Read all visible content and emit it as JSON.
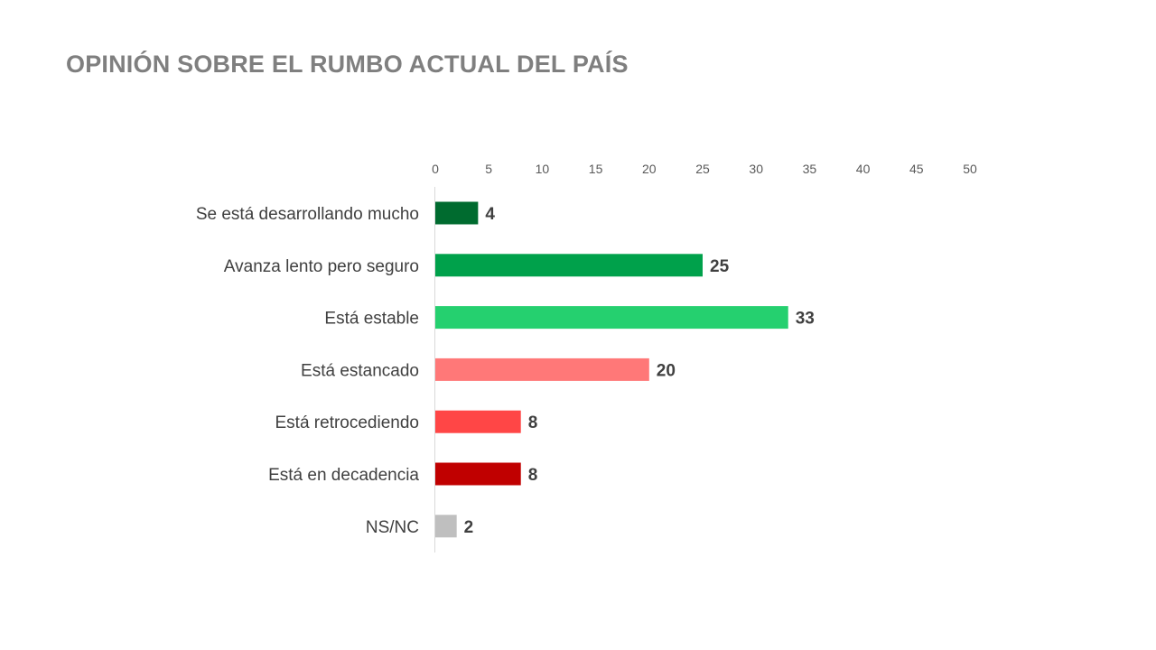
{
  "title": "OPINIÓN SOBRE EL RUMBO ACTUAL DEL PAÍS",
  "chart_data": {
    "type": "bar",
    "orientation": "horizontal",
    "title": "OPINIÓN SOBRE EL RUMBO ACTUAL DEL PAÍS",
    "xlabel": "",
    "ylabel": "",
    "xlim": [
      0,
      50
    ],
    "x_ticks": [
      0,
      5,
      10,
      15,
      20,
      25,
      30,
      35,
      40,
      45,
      50
    ],
    "x_axis_position": "top",
    "grid": false,
    "legend": "none",
    "categories": [
      "Se está desarrollando mucho",
      "Avanza lento pero seguro",
      "Está estable",
      "Está estancado",
      "Está retrocediendo",
      "Está en decadencia",
      "NS/NC"
    ],
    "values": [
      4,
      25,
      33,
      20,
      8,
      8,
      2
    ],
    "colors": [
      "#006B2F",
      "#00A14B",
      "#25D06F",
      "#FF7878",
      "#FF4646",
      "#C00000",
      "#BFBFBF"
    ],
    "data_labels": true
  }
}
